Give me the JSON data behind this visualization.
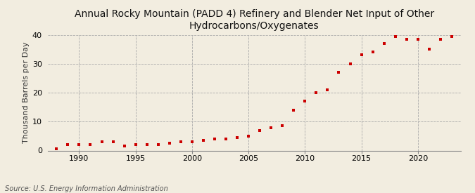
{
  "title": "Annual Rocky Mountain (PADD 4) Refinery and Blender Net Input of Other\nHydrocarbons/Oxygenates",
  "ylabel": "Thousand Barrels per Day",
  "source": "Source: U.S. Energy Information Administration",
  "background_color": "#f2ede0",
  "plot_bg_color": "#f2ede0",
  "marker_color": "#cc0000",
  "years": [
    1988,
    1989,
    1990,
    1991,
    1992,
    1993,
    1994,
    1995,
    1996,
    1997,
    1998,
    1999,
    2000,
    2001,
    2002,
    2003,
    2004,
    2005,
    2006,
    2007,
    2008,
    2009,
    2010,
    2011,
    2012,
    2013,
    2014,
    2015,
    2016,
    2017,
    2018,
    2019,
    2020,
    2021,
    2022,
    2023
  ],
  "values": [
    0.5,
    2.0,
    2.0,
    2.0,
    3.0,
    3.0,
    1.5,
    2.0,
    2.0,
    2.0,
    2.5,
    3.0,
    3.0,
    3.5,
    4.0,
    4.0,
    4.5,
    5.0,
    7.0,
    8.0,
    8.5,
    14.0,
    17.0,
    20.0,
    21.0,
    27.0,
    30.0,
    33.0,
    34.0,
    37.0,
    39.5,
    38.5,
    38.5,
    35.0,
    38.5,
    39.5
  ],
  "ylim": [
    0,
    40
  ],
  "yticks": [
    0,
    10,
    20,
    30,
    40
  ],
  "xticks": [
    1990,
    1995,
    2000,
    2005,
    2010,
    2015,
    2020
  ],
  "grid_color": "#aaaaaa",
  "title_fontsize": 10,
  "label_fontsize": 8,
  "tick_fontsize": 8,
  "source_fontsize": 7
}
